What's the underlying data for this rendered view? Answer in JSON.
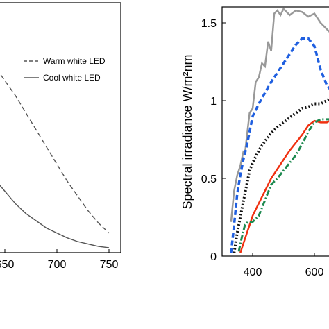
{
  "chart_data": [
    {
      "type": "line",
      "xlabel": "",
      "ylabel": "",
      "xlim": [
        628,
        758
      ],
      "ylim": [
        0,
        1
      ],
      "x_ticks": [
        "650",
        "700",
        "750"
      ],
      "legend_position": "top-right",
      "legend": [
        {
          "label": "Warm white LED",
          "style": "dashed",
          "color": "#555555"
        },
        {
          "label": "Cool white LED",
          "style": "solid",
          "color": "#555555"
        }
      ],
      "series": [
        {
          "name": "Warm white LED",
          "color": "#555555",
          "dash": "dashed",
          "x": [
            628,
            640,
            650,
            660,
            670,
            680,
            690,
            700,
            710,
            720,
            730,
            740,
            750
          ],
          "y": [
            0.82,
            0.76,
            0.7,
            0.64,
            0.57,
            0.5,
            0.43,
            0.36,
            0.29,
            0.23,
            0.17,
            0.12,
            0.08
          ]
        },
        {
          "name": "Cool white LED",
          "color": "#555555",
          "dash": "solid",
          "x": [
            628,
            640,
            650,
            660,
            670,
            680,
            690,
            700,
            710,
            720,
            730,
            740,
            750
          ],
          "y": [
            0.37,
            0.3,
            0.25,
            0.2,
            0.16,
            0.13,
            0.1,
            0.08,
            0.06,
            0.045,
            0.035,
            0.025,
            0.02
          ]
        }
      ]
    },
    {
      "type": "line",
      "xlabel": "",
      "ylabel": "Spectral irradiance W/m²nm",
      "xlim": [
        320,
        680
      ],
      "ylim": [
        0,
        1.6
      ],
      "x_ticks": [
        "400",
        "600"
      ],
      "y_ticks": [
        "0",
        "0.5",
        "1",
        "1.5"
      ],
      "series": [
        {
          "color": "#999999",
          "dash": "solid",
          "x": [
            330,
            340,
            350,
            360,
            370,
            375,
            380,
            390,
            400,
            410,
            420,
            430,
            440,
            450,
            460,
            470,
            480,
            490,
            500,
            520,
            540,
            560,
            580,
            600,
            620,
            640,
            660,
            680
          ],
          "y": [
            0.22,
            0.42,
            0.52,
            0.58,
            0.67,
            0.66,
            0.75,
            0.92,
            0.95,
            1.12,
            1.15,
            1.24,
            1.22,
            1.38,
            1.32,
            1.56,
            1.58,
            1.55,
            1.59,
            1.55,
            1.58,
            1.57,
            1.54,
            1.56,
            1.5,
            1.46,
            1.42,
            1.38
          ]
        },
        {
          "color": "#1f5fe0",
          "dash": "dashed",
          "x": [
            330,
            340,
            350,
            360,
            370,
            380,
            390,
            400,
            420,
            440,
            460,
            480,
            500,
            520,
            540,
            560,
            580,
            600,
            620,
            640,
            660,
            680
          ],
          "y": [
            0.02,
            0.2,
            0.4,
            0.52,
            0.62,
            0.7,
            0.8,
            0.9,
            0.98,
            1.05,
            1.12,
            1.18,
            1.24,
            1.3,
            1.36,
            1.4,
            1.4,
            1.35,
            1.2,
            1.1,
            1.05,
            1.0
          ]
        },
        {
          "color": "#111111",
          "dash": "dotted",
          "x": [
            340,
            350,
            360,
            370,
            380,
            390,
            400,
            420,
            440,
            460,
            480,
            500,
            520,
            540,
            560,
            580,
            600,
            620,
            640,
            660,
            680
          ],
          "y": [
            0.02,
            0.15,
            0.25,
            0.35,
            0.45,
            0.55,
            0.6,
            0.68,
            0.74,
            0.79,
            0.83,
            0.86,
            0.89,
            0.92,
            0.95,
            0.96,
            0.98,
            0.98,
            1.0,
            1.03,
            1.08
          ]
        },
        {
          "color": "#f03010",
          "dash": "solid",
          "x": [
            360,
            370,
            380,
            390,
            400,
            420,
            440,
            460,
            480,
            500,
            520,
            540,
            560,
            580,
            600,
            620,
            640,
            660,
            680
          ],
          "y": [
            0.02,
            0.08,
            0.14,
            0.2,
            0.26,
            0.34,
            0.42,
            0.5,
            0.56,
            0.62,
            0.68,
            0.73,
            0.78,
            0.84,
            0.87,
            0.86,
            0.86,
            0.88,
            0.9
          ]
        },
        {
          "color": "#1e8a50",
          "dash": "dashdot",
          "x": [
            355,
            365,
            375,
            385,
            400,
            420,
            440,
            460,
            480,
            500,
            520,
            540,
            560,
            580,
            600,
            620,
            640,
            660,
            680
          ],
          "y": [
            0.03,
            0.12,
            0.2,
            0.22,
            0.22,
            0.26,
            0.36,
            0.46,
            0.5,
            0.55,
            0.6,
            0.65,
            0.72,
            0.8,
            0.86,
            0.88,
            0.88,
            0.88,
            0.9
          ]
        }
      ]
    }
  ]
}
